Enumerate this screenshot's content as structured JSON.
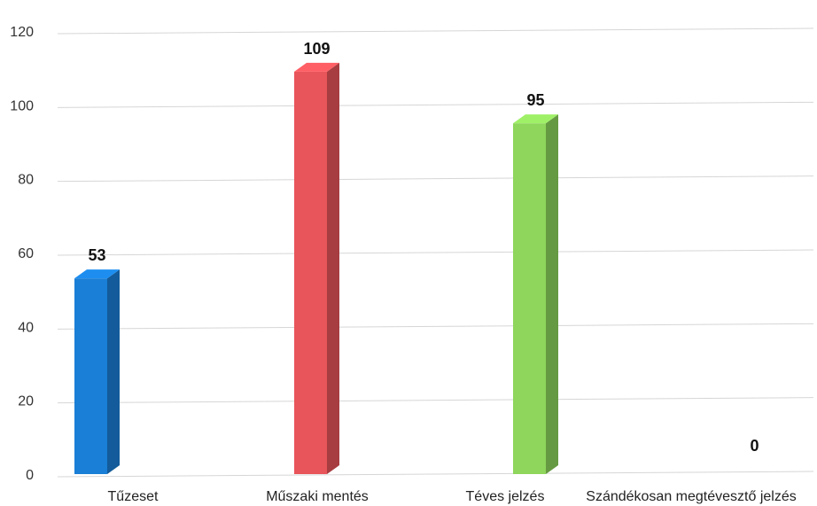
{
  "chart_data": {
    "type": "bar",
    "categories": [
      "Tűzeset",
      "Műszaki mentés",
      "Téves jelzés",
      "Szándékosan megtévesztő jelzés"
    ],
    "values": [
      53,
      109,
      95,
      0
    ],
    "data_labels": [
      "53",
      "109",
      "95",
      "0"
    ],
    "colors": [
      "#1a7fd6",
      "#e8555a",
      "#8ed65c",
      "#cccccc"
    ],
    "ylim": [
      0,
      120
    ],
    "yticks": [
      0,
      20,
      40,
      60,
      80,
      100,
      120
    ],
    "grid": true,
    "legend": "none",
    "style": "3d-column"
  }
}
